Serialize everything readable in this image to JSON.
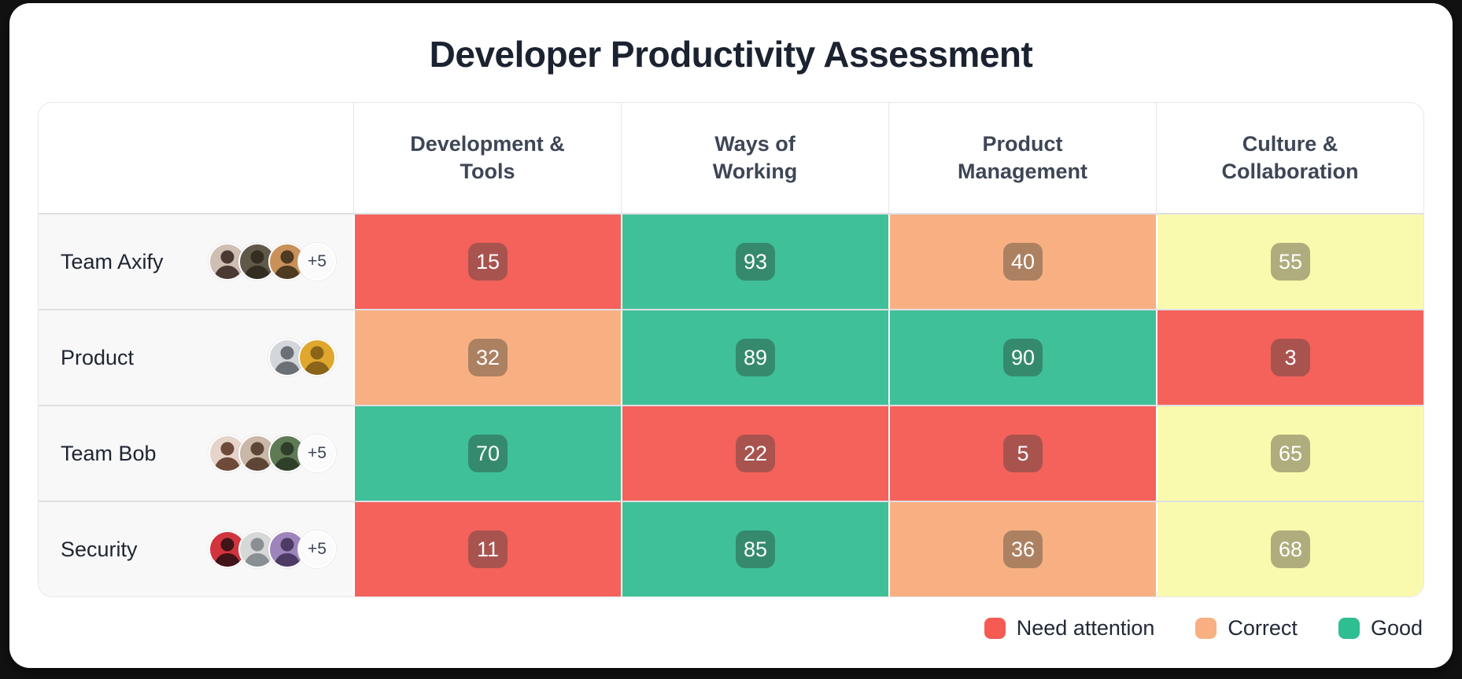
{
  "title": "Developer Productivity Assessment",
  "columns": [
    "Development &\nTools",
    "Ways of\nWorking",
    "Product\nManagement",
    "Culture &\nCollaboration"
  ],
  "rows": [
    {
      "team": "Team Axify",
      "overflow_badge": "+5",
      "avatars": [
        {
          "name": "avatar-woman-dark-hair",
          "bg": "#cfbeb2",
          "fg": "#4a3a33"
        },
        {
          "name": "avatar-man-dark-scene",
          "bg": "#60594a",
          "fg": "#332e22"
        },
        {
          "name": "avatar-woman-curly-hair",
          "bg": "#c9905a",
          "fg": "#4f3a22"
        }
      ],
      "cells": [
        {
          "value": "15",
          "level": "red"
        },
        {
          "value": "93",
          "level": "green"
        },
        {
          "value": "40",
          "level": "orange"
        },
        {
          "value": "55",
          "level": "yellow"
        }
      ]
    },
    {
      "team": "Product",
      "overflow_badge": null,
      "avatars": [
        {
          "name": "avatar-person-white-shirt",
          "bg": "#d3d6da",
          "fg": "#6b7076"
        },
        {
          "name": "avatar-woman-yellow-bg",
          "bg": "#dfa72e",
          "fg": "#8a6419"
        }
      ],
      "cells": [
        {
          "value": "32",
          "level": "orange"
        },
        {
          "value": "89",
          "level": "green"
        },
        {
          "value": "90",
          "level": "green"
        },
        {
          "value": "3",
          "level": "red"
        }
      ]
    },
    {
      "team": "Team Bob",
      "overflow_badge": "+5",
      "avatars": [
        {
          "name": "avatar-man-striped-shirt",
          "bg": "#e6d3ca",
          "fg": "#6e4a3a"
        },
        {
          "name": "avatar-woman-glasses",
          "bg": "#c9b7a7",
          "fg": "#5d4636"
        },
        {
          "name": "avatar-man-green-plants",
          "bg": "#5e7b55",
          "fg": "#2f3f2a"
        }
      ],
      "cells": [
        {
          "value": "70",
          "level": "green"
        },
        {
          "value": "22",
          "level": "red"
        },
        {
          "value": "5",
          "level": "red"
        },
        {
          "value": "65",
          "level": "yellow"
        }
      ]
    },
    {
      "team": "Security",
      "overflow_badge": "+5",
      "avatars": [
        {
          "name": "avatar-woman-red-bg",
          "bg": "#d2343d",
          "fg": "#401418"
        },
        {
          "name": "avatar-woman-blonde-glasses",
          "bg": "#d7d9d9",
          "fg": "#8a8f93"
        },
        {
          "name": "avatar-man-yellow-beanie",
          "bg": "#9d84bb",
          "fg": "#4d3b66"
        }
      ],
      "cells": [
        {
          "value": "11",
          "level": "red"
        },
        {
          "value": "85",
          "level": "green"
        },
        {
          "value": "36",
          "level": "orange"
        },
        {
          "value": "68",
          "level": "yellow"
        }
      ]
    }
  ],
  "legend": [
    {
      "label": "Need attention",
      "color": "#f55b53"
    },
    {
      "label": "Correct",
      "color": "#f8b083"
    },
    {
      "label": "Good",
      "color": "#2fbd92"
    }
  ],
  "level_colors": {
    "red": {
      "cell": "#f4625b",
      "badge": "#a9534f"
    },
    "green": {
      "cell": "#3fc098",
      "badge": "#358a6e"
    },
    "orange": {
      "cell": "#f8b083",
      "badge": "#ac8162"
    },
    "yellow": {
      "cell": "#fafaae",
      "badge": "#afad7d"
    }
  },
  "chart_data": {
    "type": "heatmap",
    "title": "Developer Productivity Assessment",
    "columns": [
      "Development & Tools",
      "Ways of Working",
      "Product Management",
      "Culture & Collaboration"
    ],
    "rows": [
      "Team Axify",
      "Product",
      "Team Bob",
      "Security"
    ],
    "values": [
      [
        15,
        93,
        40,
        55
      ],
      [
        32,
        89,
        90,
        3
      ],
      [
        70,
        22,
        5,
        65
      ],
      [
        11,
        85,
        36,
        68
      ]
    ],
    "cell_levels": [
      [
        "red",
        "green",
        "orange",
        "yellow"
      ],
      [
        "orange",
        "green",
        "green",
        "red"
      ],
      [
        "green",
        "red",
        "red",
        "yellow"
      ],
      [
        "red",
        "green",
        "orange",
        "yellow"
      ]
    ],
    "legend": [
      "Need attention",
      "Correct",
      "Good"
    ],
    "legend_position": "bottom-right",
    "value_range": [
      0,
      100
    ]
  }
}
